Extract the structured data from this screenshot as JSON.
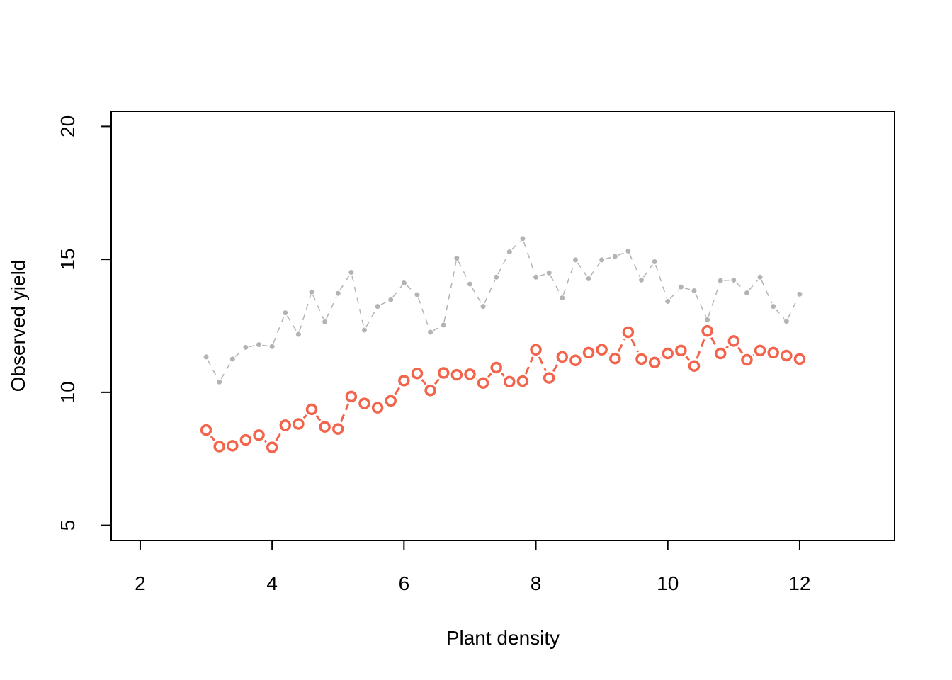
{
  "chart_data": {
    "type": "line",
    "title": "",
    "xlabel": "Plant density",
    "ylabel": "Observed yield",
    "xlim": [
      1.56,
      13.44
    ],
    "ylim": [
      4.43,
      20.57
    ],
    "xticks": [
      2,
      4,
      6,
      8,
      10,
      12
    ],
    "yticks": [
      5,
      10,
      15,
      20
    ],
    "grid": false,
    "legend": "none",
    "x": [
      3.0,
      3.2,
      3.4,
      3.6,
      3.8,
      4.0,
      4.2,
      4.4,
      4.6,
      4.8,
      5.0,
      5.2,
      5.4,
      5.6,
      5.8,
      6.0,
      6.2,
      6.4,
      6.6,
      6.8,
      7.0,
      7.2,
      7.4,
      7.6,
      7.8,
      8.0,
      8.2,
      8.4,
      8.6,
      8.8,
      9.0,
      9.2,
      9.4,
      9.6,
      9.8,
      10.0,
      10.2,
      10.4,
      10.6,
      10.8,
      11.0,
      11.2,
      11.4,
      11.6,
      11.8,
      12.0
    ],
    "series": [
      {
        "color": "#b3b3b3",
        "marker": "small-dot",
        "line": "dashed-thin",
        "values": [
          11.33,
          10.39,
          11.25,
          11.69,
          11.79,
          11.72,
          12.99,
          12.18,
          13.77,
          12.65,
          13.72,
          14.51,
          12.34,
          13.23,
          13.48,
          14.11,
          13.67,
          12.26,
          12.53,
          15.04,
          14.07,
          13.23,
          14.33,
          15.28,
          15.78,
          14.33,
          14.49,
          13.55,
          14.98,
          14.27,
          14.98,
          15.11,
          15.31,
          14.22,
          14.91,
          13.42,
          13.96,
          13.82,
          12.73,
          14.2,
          14.22,
          13.74,
          14.33,
          13.23,
          12.67,
          13.69
        ]
      },
      {
        "color": "#f2654c",
        "marker": "open-circle",
        "line": "dashed",
        "values": [
          8.58,
          7.96,
          7.99,
          8.21,
          8.39,
          7.93,
          8.76,
          8.81,
          9.36,
          8.7,
          8.62,
          9.84,
          9.58,
          9.42,
          9.68,
          10.44,
          10.71,
          10.07,
          10.73,
          10.66,
          10.68,
          10.35,
          10.93,
          10.4,
          10.42,
          11.6,
          10.54,
          11.33,
          11.2,
          11.49,
          11.6,
          11.27,
          12.26,
          11.25,
          11.12,
          11.46,
          11.57,
          10.99,
          12.31,
          11.46,
          11.93,
          11.22,
          11.57,
          11.49,
          11.38,
          11.25
        ]
      }
    ]
  }
}
